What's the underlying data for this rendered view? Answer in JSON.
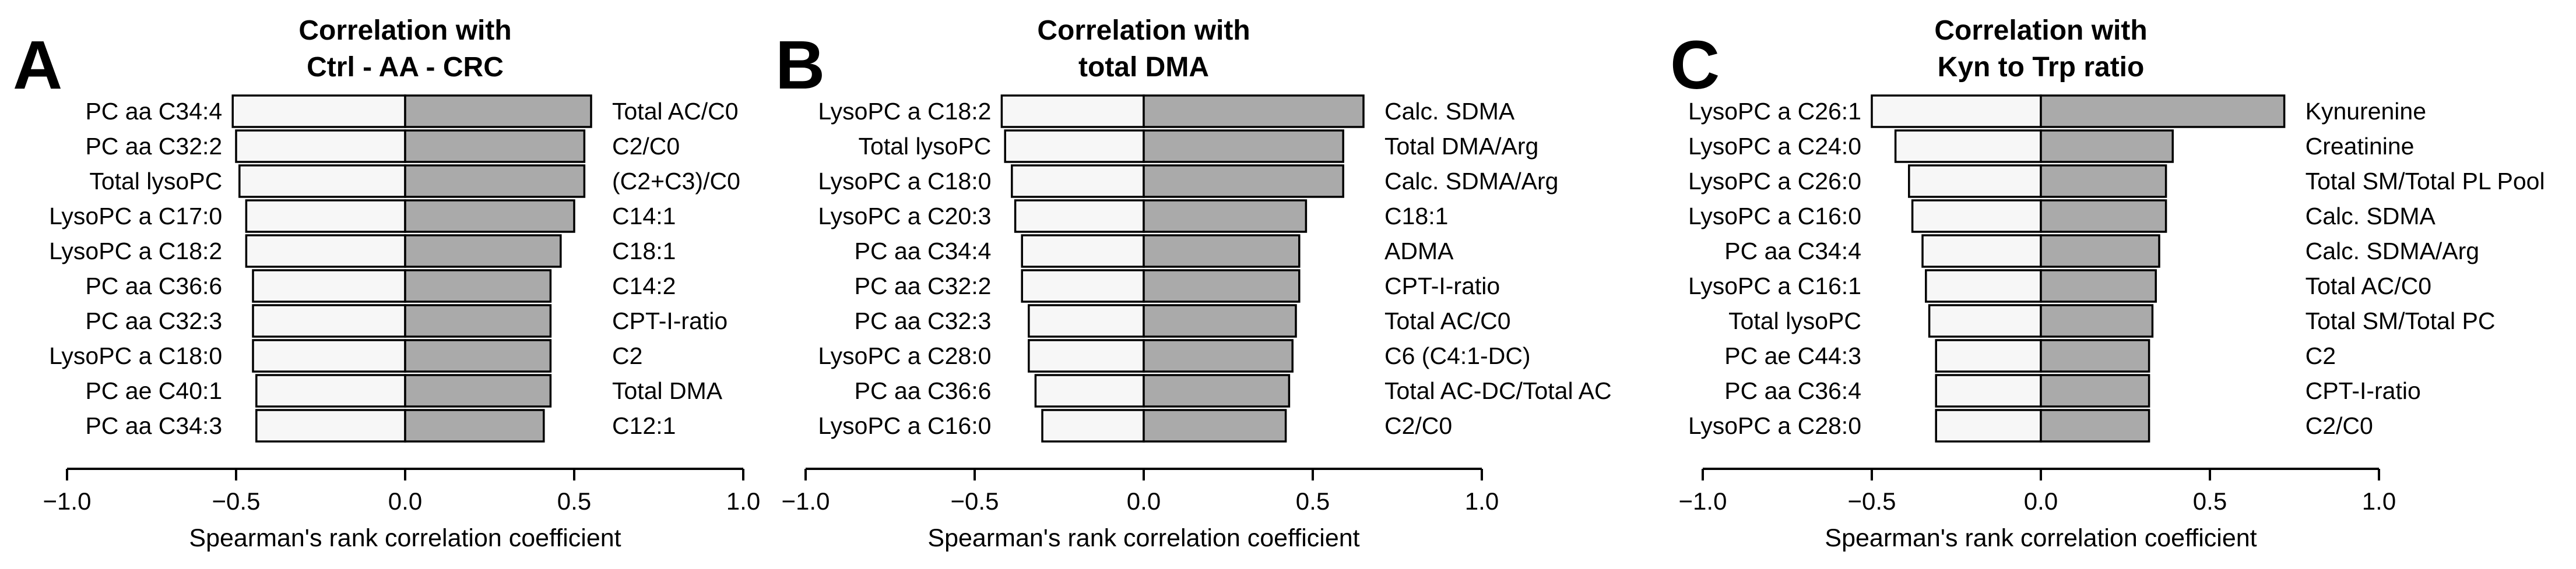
{
  "chart_data": [
    {
      "type": "bar",
      "orientation": "diverging-horizontal",
      "panel": "A",
      "title_lines": [
        "Correlation with",
        "Ctrl - AA - CRC"
      ],
      "xlabel": "Spearman's rank correlation coefficient",
      "xlim": [
        -1.0,
        1.0
      ],
      "xticks": [
        -1.0,
        -0.5,
        0.0,
        0.5,
        1.0
      ],
      "xtick_labels": [
        "−1.0",
        "−0.5",
        "0.0",
        "0.5",
        "1.0"
      ],
      "negative_color": "#f7f7f7",
      "positive_color": "#aaaaaa",
      "negative": {
        "categories": [
          "PC aa C34:4",
          "PC aa C32:2",
          "Total lysoPC",
          "LysoPC a C17:0",
          "LysoPC a C18:2",
          "PC aa C36:6",
          "PC aa C32:3",
          "LysoPC a C18:0",
          "PC ae C40:1",
          "PC aa C34:3"
        ],
        "values": [
          -0.51,
          -0.5,
          -0.49,
          -0.47,
          -0.47,
          -0.45,
          -0.45,
          -0.45,
          -0.44,
          -0.44
        ]
      },
      "positive": {
        "categories": [
          "Total AC/C0",
          "C2/C0",
          "(C2+C3)/C0",
          "C14:1",
          "C18:1",
          "C14:2",
          "CPT-I-ratio",
          "C2",
          "Total DMA",
          "C12:1"
        ],
        "values": [
          0.55,
          0.53,
          0.53,
          0.5,
          0.46,
          0.43,
          0.43,
          0.43,
          0.43,
          0.41
        ]
      }
    },
    {
      "type": "bar",
      "orientation": "diverging-horizontal",
      "panel": "B",
      "title_lines": [
        "Correlation with",
        "total DMA"
      ],
      "xlabel": "Spearman's rank correlation coefficient",
      "xlim": [
        -1.0,
        1.0
      ],
      "xticks": [
        -1.0,
        -0.5,
        0.0,
        0.5,
        1.0
      ],
      "xtick_labels": [
        "−1.0",
        "−0.5",
        "0.0",
        "0.5",
        "1.0"
      ],
      "negative_color": "#f7f7f7",
      "positive_color": "#aaaaaa",
      "negative": {
        "categories": [
          "LysoPC a C18:2",
          "Total lysoPC",
          "LysoPC a C18:0",
          "LysoPC a C20:3",
          "PC aa C34:4",
          "PC aa C32:2",
          "PC aa C32:3",
          "LysoPC a C28:0",
          "PC aa C36:6",
          "LysoPC a C16:0"
        ],
        "values": [
          -0.42,
          -0.41,
          -0.39,
          -0.38,
          -0.36,
          -0.36,
          -0.34,
          -0.34,
          -0.32,
          -0.3
        ]
      },
      "positive": {
        "categories": [
          "Calc. SDMA",
          "Total DMA/Arg",
          "Calc. SDMA/Arg",
          "C18:1",
          "ADMA",
          "CPT-I-ratio",
          "Total AC/C0",
          "C6 (C4:1-DC)",
          "Total AC-DC/Total AC",
          "C2/C0"
        ],
        "values": [
          0.65,
          0.59,
          0.59,
          0.48,
          0.46,
          0.46,
          0.45,
          0.44,
          0.43,
          0.42
        ]
      }
    },
    {
      "type": "bar",
      "orientation": "diverging-horizontal",
      "panel": "C",
      "title_lines": [
        "Correlation with",
        "Kyn to Trp ratio"
      ],
      "xlabel": "Spearman's rank correlation coefficient",
      "xlim": [
        -1.0,
        1.0
      ],
      "xticks": [
        -1.0,
        -0.5,
        0.0,
        0.5,
        1.0
      ],
      "xtick_labels": [
        "−1.0",
        "−0.5",
        "0.0",
        "0.5",
        "1.0"
      ],
      "negative_color": "#f7f7f7",
      "positive_color": "#aaaaaa",
      "negative": {
        "categories": [
          "LysoPC a C26:1",
          "LysoPC a C24:0",
          "LysoPC a C26:0",
          "LysoPC a C16:0",
          "PC aa C34:4",
          "LysoPC a C16:1",
          "Total lysoPC",
          "PC ae C44:3",
          "PC aa C36:4",
          "LysoPC a C28:0"
        ],
        "values": [
          -0.5,
          -0.43,
          -0.39,
          -0.38,
          -0.35,
          -0.34,
          -0.33,
          -0.31,
          -0.31,
          -0.31
        ]
      },
      "positive": {
        "categories": [
          "Kynurenine",
          "Creatinine",
          "Total SM/Total PL Pool",
          "Calc. SDMA",
          "Calc. SDMA/Arg",
          "Total AC/C0",
          "Total SM/Total PC",
          "C2",
          "CPT-I-ratio",
          "C2/C0"
        ],
        "values": [
          0.72,
          0.39,
          0.37,
          0.37,
          0.35,
          0.34,
          0.33,
          0.32,
          0.32,
          0.32
        ]
      }
    }
  ]
}
